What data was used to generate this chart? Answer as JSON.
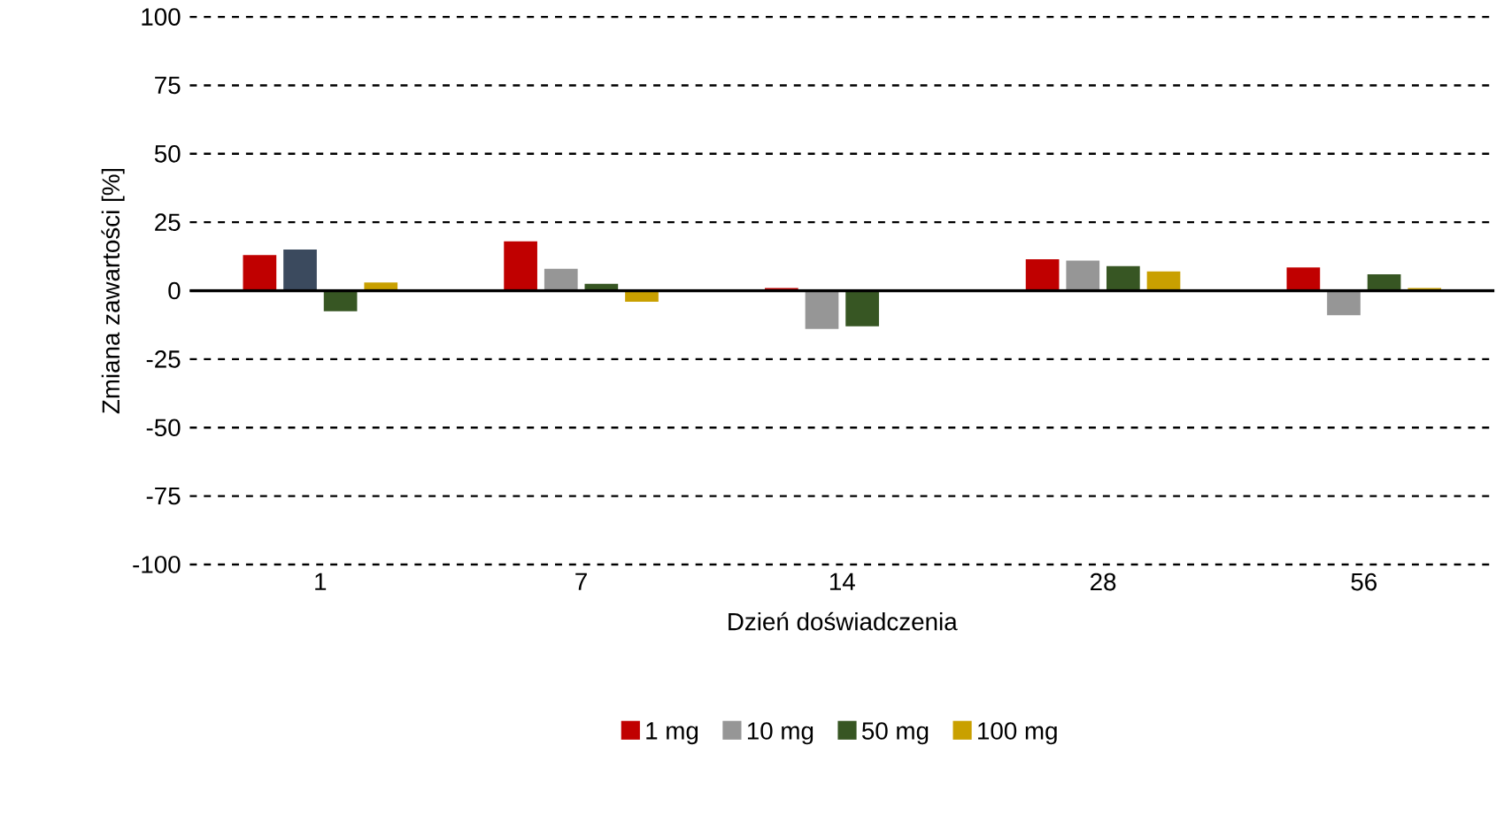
{
  "chart_data": {
    "type": "bar",
    "xlabel": "Dzień doświadczenia",
    "ylabel": "Zmiana zawartości [%]",
    "categories": [
      "1",
      "7",
      "14",
      "28",
      "56"
    ],
    "series": [
      {
        "name": "1 mg",
        "color": "#c00000",
        "values": [
          13,
          18,
          1,
          11.5,
          8.5
        ]
      },
      {
        "name": "10 mg",
        "color": "#969696",
        "colors": [
          "#3b4a5e",
          "#969696",
          "#969696",
          "#969696",
          "#969696"
        ],
        "values": [
          15,
          8,
          -14,
          11,
          -9
        ]
      },
      {
        "name": "50 mg",
        "color": "#375623",
        "values": [
          -7.5,
          2.5,
          -13,
          9,
          6
        ]
      },
      {
        "name": "100 mg",
        "color": "#c9a000",
        "values": [
          3,
          -4,
          null,
          7,
          1
        ]
      }
    ],
    "ylim": [
      -100,
      100
    ],
    "yticks": [
      -100,
      -75,
      -50,
      -25,
      0,
      25,
      50,
      75,
      100
    ],
    "grid": "y",
    "legend": "bottom"
  }
}
